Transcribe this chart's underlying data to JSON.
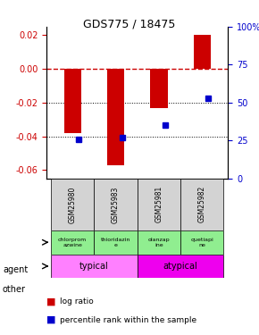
{
  "title": "GDS775 / 18475",
  "samples": [
    "GSM25980",
    "GSM25983",
    "GSM25981",
    "GSM25982"
  ],
  "log_ratios": [
    -0.038,
    -0.057,
    -0.023,
    0.02
  ],
  "percentile_ranks": [
    26,
    27,
    35,
    53
  ],
  "agents": [
    "chlorprom\nazwine",
    "thioridazin\ne",
    "olanzap\nine",
    "quetiapi\nne"
  ],
  "agent_colors": [
    "#90ee90",
    "#90ee90",
    "#90ee90",
    "#90ee90"
  ],
  "categories": [
    "typical",
    "atypical"
  ],
  "cat_colors": [
    "#ff80ff",
    "#ee00ee"
  ],
  "ylim_left": [
    -0.065,
    0.025
  ],
  "ylim_right": [
    0,
    100
  ],
  "bar_color": "#cc0000",
  "dot_color": "#0000cc",
  "zero_line_color": "#cc0000",
  "grid_color": "#000000",
  "left_axis_color": "#cc0000",
  "right_axis_color": "#0000cc",
  "bar_width": 0.4,
  "right_tick_labels": [
    "100%",
    "75",
    "50",
    "25",
    "0"
  ],
  "right_ticks": [
    100,
    75,
    50,
    25,
    0
  ],
  "left_ticks": [
    0.02,
    0.0,
    -0.02,
    -0.04,
    -0.06
  ]
}
